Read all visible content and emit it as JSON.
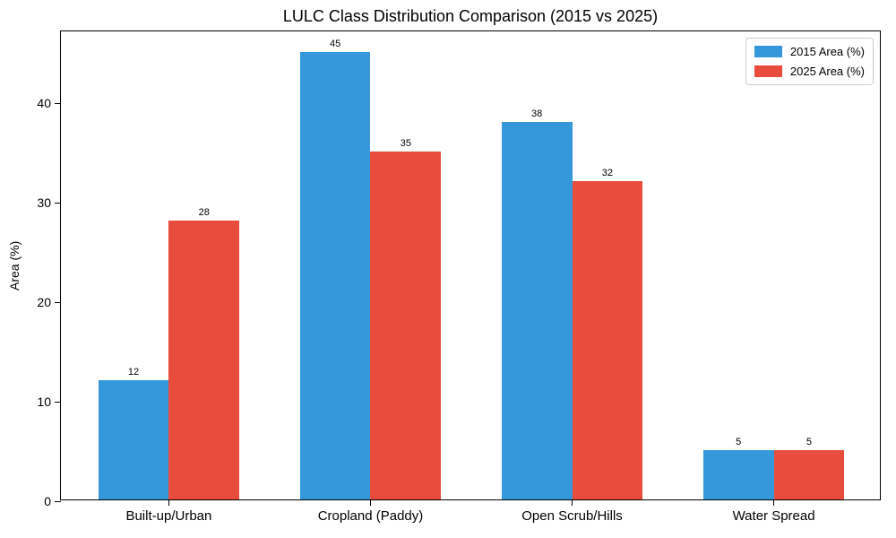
{
  "chart_data": {
    "type": "bar",
    "title": "LULC Class Distribution Comparison (2015 vs 2025)",
    "xlabel": "",
    "ylabel": "Area (%)",
    "categories": [
      "Built-up/Urban",
      "Cropland (Paddy)",
      "Open Scrub/Hills",
      "Water Spread"
    ],
    "series": [
      {
        "name": "2015 Area (%)",
        "color": "#3498db",
        "values": [
          12,
          45,
          38,
          5
        ]
      },
      {
        "name": "2025 Area (%)",
        "color": "#e74c3c",
        "values": [
          28,
          35,
          32,
          5
        ]
      }
    ],
    "bar_value_labels": [
      [
        "12",
        "45",
        "38",
        "5"
      ],
      [
        "28",
        "35",
        "32",
        "5"
      ]
    ],
    "yticks": [
      "0",
      "10",
      "20",
      "30",
      "40"
    ],
    "ytick_values": [
      0,
      10,
      20,
      30,
      40
    ],
    "ylim": [
      0,
      47.25
    ],
    "grid": false,
    "legend_position": "upper right",
    "colors": {
      "series_2015": "#3498db",
      "series_2025": "#e74c3c",
      "axis": "#000000",
      "background": "#ffffff"
    }
  }
}
